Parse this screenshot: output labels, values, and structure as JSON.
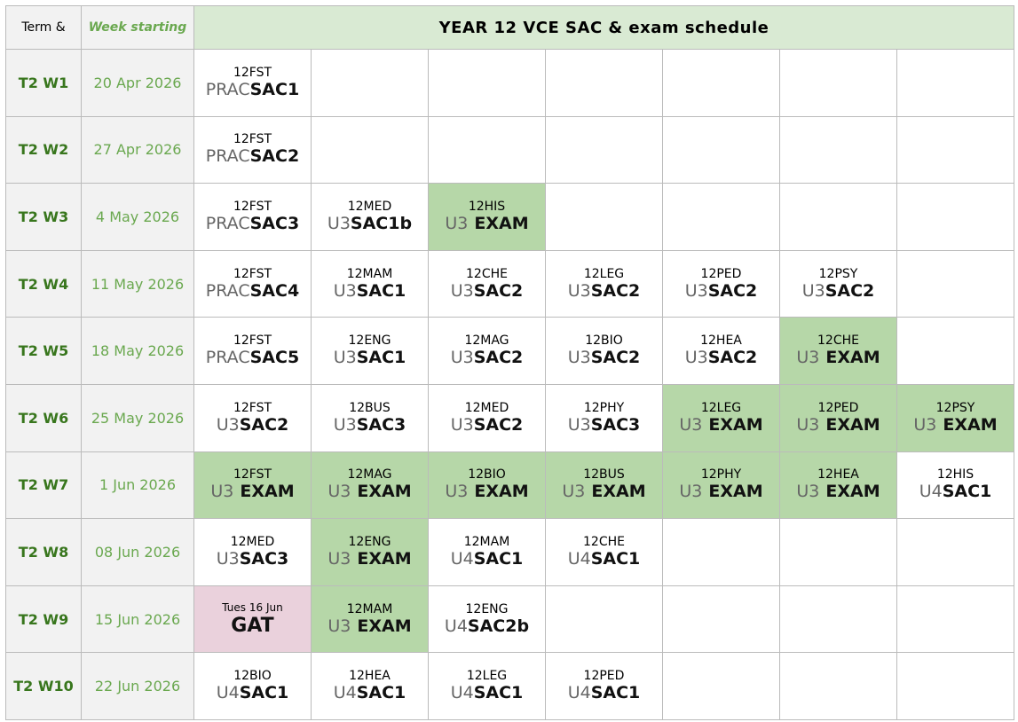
{
  "header": {
    "term": "Term &",
    "week": "Week starting",
    "title": "YEAR 12 VCE SAC & exam schedule"
  },
  "rows": [
    {
      "term": "T2 W1",
      "week": "20 Apr 2026",
      "cells": [
        {
          "code": "12FST",
          "prefix": "PRAC",
          "task": "SAC1"
        },
        null,
        null,
        null,
        null,
        null,
        null
      ]
    },
    {
      "term": "T2 W2",
      "week": "27 Apr 2026",
      "cells": [
        {
          "code": "12FST",
          "prefix": "PRAC",
          "task": "SAC2"
        },
        null,
        null,
        null,
        null,
        null,
        null
      ]
    },
    {
      "term": "T2 W3",
      "week": "4 May 2026",
      "cells": [
        {
          "code": "12FST",
          "prefix": "PRAC",
          "task": "SAC3"
        },
        {
          "code": "12MED",
          "prefix": "U3",
          "task": "SAC1b"
        },
        {
          "code": "12HIS",
          "prefix": "U3",
          "task": "EXAM",
          "color": "#b6d7a8"
        },
        null,
        null,
        null,
        null
      ]
    },
    {
      "term": "T2 W4",
      "week": "11 May 2026",
      "cells": [
        {
          "code": "12FST",
          "prefix": "PRAC",
          "task": "SAC4"
        },
        {
          "code": "12MAM",
          "prefix": "U3",
          "task": "SAC1"
        },
        {
          "code": "12CHE",
          "prefix": "U3",
          "task": "SAC2"
        },
        {
          "code": "12LEG",
          "prefix": "U3",
          "task": "SAC2"
        },
        {
          "code": "12PED",
          "prefix": "U3",
          "task": "SAC2"
        },
        {
          "code": "12PSY",
          "prefix": "U3",
          "task": "SAC2"
        },
        null
      ]
    },
    {
      "term": "T2 W5",
      "week": "18 May 2026",
      "cells": [
        {
          "code": "12FST",
          "prefix": "PRAC",
          "task": "SAC5"
        },
        {
          "code": "12ENG",
          "prefix": "U3",
          "task": "SAC1"
        },
        {
          "code": "12MAG",
          "prefix": "U3",
          "task": "SAC2"
        },
        {
          "code": "12BIO",
          "prefix": "U3",
          "task": "SAC2"
        },
        {
          "code": "12HEA",
          "prefix": "U3",
          "task": "SAC2"
        },
        {
          "code": "12CHE",
          "prefix": "U3",
          "task": "EXAM",
          "color": "#b6d7a8"
        },
        null
      ]
    },
    {
      "term": "T2 W6",
      "week": "25 May 2026",
      "cells": [
        {
          "code": "12FST",
          "prefix": "U3",
          "task": "SAC2"
        },
        {
          "code": "12BUS",
          "prefix": "U3",
          "task": "SAC3"
        },
        {
          "code": "12MED",
          "prefix": "U3",
          "task": "SAC2"
        },
        {
          "code": "12PHY",
          "prefix": "U3",
          "task": "SAC3"
        },
        {
          "code": "12LEG",
          "prefix": "U3",
          "task": "EXAM",
          "color": "#b6d7a8"
        },
        {
          "code": "12PED",
          "prefix": "U3",
          "task": "EXAM",
          "color": "#b6d7a8"
        },
        {
          "code": "12PSY",
          "prefix": "U3",
          "task": "EXAM",
          "color": "#b6d7a8"
        }
      ]
    },
    {
      "term": "T2 W7",
      "week": "1 Jun 2026",
      "cells": [
        {
          "code": "12FST",
          "prefix": "U3",
          "task": "EXAM",
          "color": "#b6d7a8"
        },
        {
          "code": "12MAG",
          "prefix": "U3",
          "task": "EXAM",
          "color": "#b6d7a8"
        },
        {
          "code": "12BIO",
          "prefix": "U3",
          "task": "EXAM",
          "color": "#b6d7a8"
        },
        {
          "code": "12BUS",
          "prefix": "U3",
          "task": "EXAM",
          "color": "#b6d7a8"
        },
        {
          "code": "12PHY",
          "prefix": "U3",
          "task": "EXAM",
          "color": "#b6d7a8"
        },
        {
          "code": "12HEA",
          "prefix": "U3",
          "task": "EXAM",
          "color": "#b6d7a8"
        },
        {
          "code": "12HIS",
          "prefix": "U4",
          "task": "SAC1"
        }
      ]
    },
    {
      "term": "T2 W8",
      "week": "08 Jun 2026",
      "cells": [
        {
          "code": "12MED",
          "prefix": "U3",
          "task": "SAC3"
        },
        {
          "code": "12ENG",
          "prefix": "U3",
          "task": "EXAM",
          "color": "#b6d7a8"
        },
        {
          "code": "12MAM",
          "prefix": "U4",
          "task": "SAC1"
        },
        {
          "code": "12CHE",
          "prefix": "U4",
          "task": "SAC1"
        },
        null,
        null,
        null
      ]
    },
    {
      "term": "T2 W9",
      "week": "15 Jun 2026",
      "cells": [
        {
          "code": "Tues 16 Jun",
          "task": "GAT",
          "color": "#ead1dc"
        },
        {
          "code": "12MAM",
          "prefix": "U3",
          "task": "EXAM",
          "color": "#b6d7a8"
        },
        {
          "code": "12ENG",
          "prefix": "U4",
          "task": "SAC2b"
        },
        null,
        null,
        null,
        null
      ]
    },
    {
      "term": "T2 W10",
      "week": "22 Jun 2026",
      "cells": [
        {
          "code": "12BIO",
          "prefix": "U4",
          "task": "SAC1"
        },
        {
          "code": "12HEA",
          "prefix": "U4",
          "task": "SAC1"
        },
        {
          "code": "12LEG",
          "prefix": "U4",
          "task": "SAC1"
        },
        {
          "code": "12PED",
          "prefix": "U4",
          "task": "SAC1"
        },
        null,
        null,
        null
      ]
    }
  ]
}
